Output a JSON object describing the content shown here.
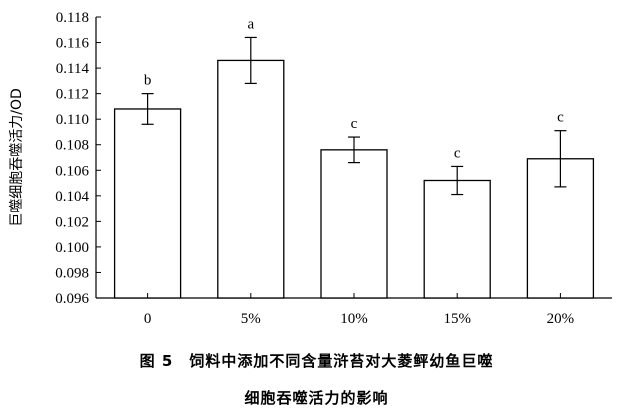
{
  "caption": {
    "line1": "图 5　饲料中添加不同含量浒苔对大菱鲆幼鱼巨噬",
    "line2": "细胞吞噬活力的影响"
  },
  "chart_data": {
    "type": "bar",
    "ylabel": "巨噬细胞吞噬活力/OD",
    "xlabel": "",
    "ylim": [
      0.096,
      0.118
    ],
    "yticks": [
      0.096,
      0.098,
      0.1,
      0.102,
      0.104,
      0.106,
      0.108,
      0.11,
      0.112,
      0.114,
      0.116,
      0.118
    ],
    "ytick_labels": [
      "0.096",
      "0.098",
      "0.100",
      "0.102",
      "0.104",
      "0.106",
      "0.108",
      "0.110",
      "0.112",
      "0.114",
      "0.116",
      "0.118"
    ],
    "categories": [
      "0",
      "5%",
      "10%",
      "15%",
      "20%"
    ],
    "values": [
      0.1108,
      0.1146,
      0.1076,
      0.1052,
      0.1069
    ],
    "errors": [
      0.0012,
      0.0018,
      0.001,
      0.0011,
      0.0022
    ],
    "significance": [
      "b",
      "a",
      "c",
      "c",
      "c"
    ],
    "grid": false,
    "bar_color": "#ffffff",
    "edge_color": "#000000"
  }
}
